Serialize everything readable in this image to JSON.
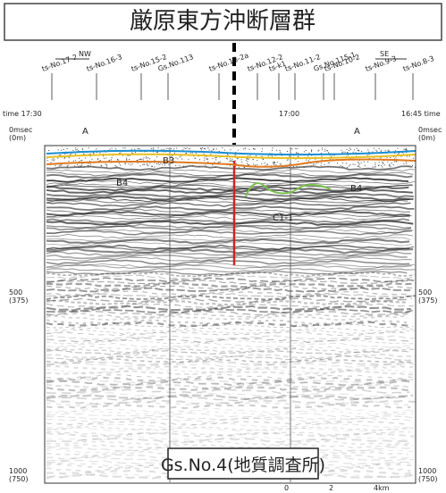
{
  "title": "厳原東方沖断層群",
  "direction": {
    "left": "NW",
    "right": "SE"
  },
  "stations": [
    "ts-No.17-2",
    "ts-No.16-3",
    "ts-No.15-2",
    "Gs.No.113",
    "ts-No.13-2a",
    "ts-No.12-2",
    "ts-k1",
    "ts-No.11-2",
    "Gs.No.115-1",
    "ts-No.10-2",
    "ts-No.9-3",
    "ts-No.8-3"
  ],
  "times": {
    "left": "time 17:30",
    "middle": "17:00",
    "right": "16:45 time"
  },
  "left_axis": [
    [
      "0msec",
      "(0m)"
    ],
    [
      "500",
      "(375)"
    ],
    [
      "1000",
      "(750)"
    ]
  ],
  "right_axis": [
    [
      "0msec",
      "(0m)"
    ],
    [
      "500",
      "(375)"
    ],
    [
      "1000",
      "(750)"
    ]
  ],
  "horizons": [
    "A",
    "A",
    "B3",
    "B4",
    "B4",
    "C1-1"
  ],
  "scale": [
    "0",
    "2",
    "4km"
  ],
  "source": "Gs.No.4(地質調査所)"
}
